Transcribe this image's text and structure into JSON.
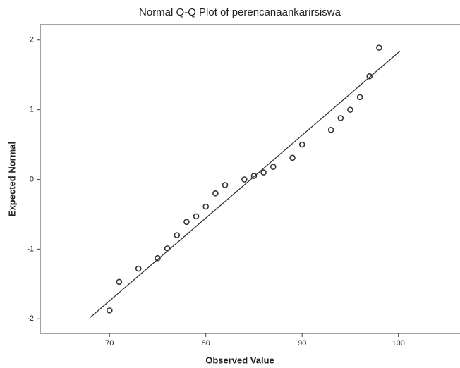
{
  "chart_data": {
    "type": "scatter",
    "title": "Normal Q-Q Plot of perencanaankarirsiswa",
    "x_label": "Observed Value",
    "y_label": "Expected Normal",
    "series": [
      {
        "x": [
          70,
          71,
          73,
          75,
          76,
          77,
          78,
          79,
          80,
          81,
          82,
          84,
          85,
          86,
          87,
          89,
          90,
          93,
          94,
          95,
          96,
          97,
          98
        ],
        "values": [
          -1.88,
          -1.47,
          -1.28,
          -1.13,
          -0.99,
          -0.8,
          -0.61,
          -0.53,
          -0.39,
          -0.2,
          -0.08,
          0.0,
          0.05,
          0.1,
          0.18,
          0.31,
          0.5,
          0.71,
          0.88,
          1.0,
          1.18,
          1.48,
          1.89
        ],
        "color": "#333333"
      }
    ],
    "reference_line": {
      "x": [
        68,
        100.15
      ],
      "y": [
        -1.98,
        1.84
      ],
      "color": "#333333"
    },
    "xlim": [
      62.8,
      106.4
    ],
    "xticks": [
      70,
      80,
      90,
      100
    ],
    "ylim": [
      -2.21,
      2.22
    ],
    "yticks": [
      -2,
      -1,
      0,
      1,
      2
    ]
  }
}
